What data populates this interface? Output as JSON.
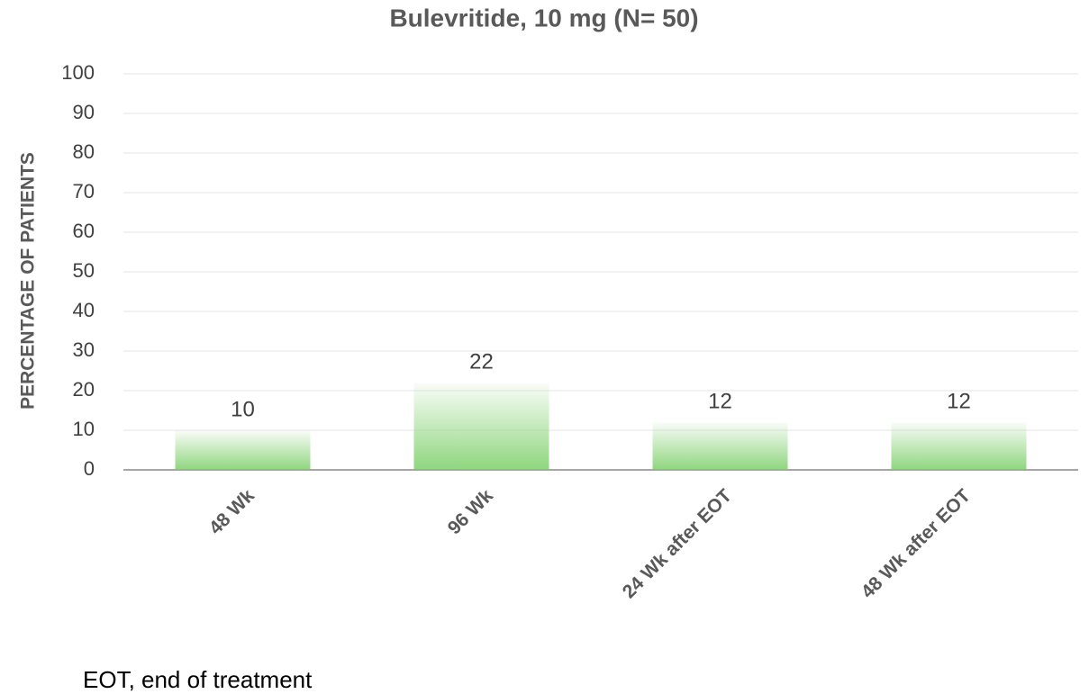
{
  "chart_data": {
    "type": "bar",
    "title": "Bulevritide, 10 mg (N= 50)",
    "y_label": "PERCENTAGE OF PATIENTS",
    "categories": [
      "48 Wk",
      "96 Wk",
      "24 Wk after EOT",
      "48 Wk after EOT"
    ],
    "values": [
      10,
      22,
      12,
      12
    ],
    "color": "#8fd67e",
    "ylim": [
      0,
      100
    ],
    "yticks": [
      0,
      10,
      20,
      30,
      40,
      50,
      60,
      70,
      80,
      90,
      100
    ],
    "grid": true,
    "footnote": "EOT, end of treatment"
  }
}
